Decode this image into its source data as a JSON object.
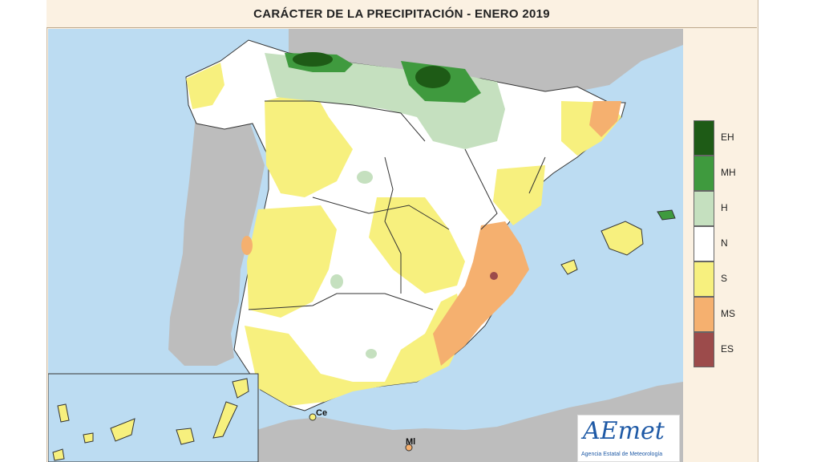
{
  "title": "CARÁCTER DE LA PRECIPITACIÓN - ENERO 2019",
  "legend": [
    {
      "code": "EH",
      "color": "#1e5b16"
    },
    {
      "code": "MH",
      "color": "#3f9a3e"
    },
    {
      "code": "H",
      "color": "#c5e0bf"
    },
    {
      "code": "N",
      "color": "#ffffff"
    },
    {
      "code": "S",
      "color": "#f7f07e"
    },
    {
      "code": "MS",
      "color": "#f5b06f"
    },
    {
      "code": "ES",
      "color": "#9c4b4b"
    }
  ],
  "cities": {
    "ceuta": "Ce",
    "melilla": "Ml"
  },
  "logo": {
    "text": "AEmet",
    "subtitle": "Agencia Estatal de Meteorología"
  },
  "colors": {
    "sea": "#bcdcf2",
    "foreign_land": "#bdbdbd",
    "border_line": "#333333"
  }
}
